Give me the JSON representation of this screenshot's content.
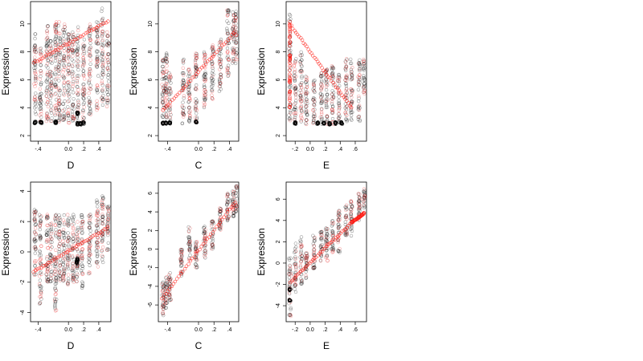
{
  "chart_data": [
    {
      "type": "scatter",
      "xlabel": "D",
      "ylabel": "Expression",
      "xlim": [
        -0.5,
        0.56
      ],
      "ylim": [
        1.6,
        11.6
      ],
      "xticks": [
        -0.4,
        0.0,
        0.2,
        0.4
      ],
      "yticks": [
        2,
        4,
        6,
        8,
        10
      ],
      "clusters": [
        {
          "x": -0.44,
          "ymin": 3,
          "ymax": 9.3
        },
        {
          "x": -0.37,
          "ymin": 2.8,
          "ymax": 8.3
        },
        {
          "x": -0.28,
          "ymin": 3,
          "ymax": 10
        },
        {
          "x": -0.23,
          "ymin": 3,
          "ymax": 9
        },
        {
          "x": -0.17,
          "ymin": 3,
          "ymax": 10.2
        },
        {
          "x": -0.12,
          "ymin": 3,
          "ymax": 10.5
        },
        {
          "x": -0.06,
          "ymin": 3,
          "ymax": 10
        },
        {
          "x": 0.0,
          "ymin": 2.9,
          "ymax": 9.5
        },
        {
          "x": 0.06,
          "ymin": 3,
          "ymax": 9.6
        },
        {
          "x": 0.12,
          "ymin": 2.8,
          "ymax": 10
        },
        {
          "x": 0.2,
          "ymin": 3,
          "ymax": 9
        },
        {
          "x": 0.28,
          "ymin": 3.5,
          "ymax": 10
        },
        {
          "x": 0.38,
          "ymin": 3.7,
          "ymax": 10.5
        },
        {
          "x": 0.45,
          "ymin": 4,
          "ymax": 11.2
        },
        {
          "x": 0.52,
          "ymin": 4,
          "ymax": 10
        }
      ],
      "black_clumps": [
        {
          "x": -0.44,
          "y": 2.95
        },
        {
          "x": -0.36,
          "y": 2.95
        },
        {
          "x": -0.17,
          "y": 2.95
        },
        {
          "x": 0.12,
          "y": 2.85
        },
        {
          "x": 0.16,
          "y": 2.85
        },
        {
          "x": 0.2,
          "y": 2.9
        },
        {
          "x": 0.12,
          "y": 3.6
        }
      ],
      "red_trend": {
        "x0": -0.46,
        "y0": 7.2,
        "x1": 0.52,
        "y1": 10.2
      }
    },
    {
      "type": "scatter",
      "xlabel": "C",
      "ylabel": "Expression",
      "xlim": [
        -0.52,
        0.52
      ],
      "ylim": [
        1.6,
        11.6
      ],
      "xticks": [
        -0.4,
        0.0,
        0.2,
        0.4
      ],
      "yticks": [
        2,
        4,
        6,
        8,
        10
      ],
      "clusters": [
        {
          "x": -0.46,
          "ymin": 2.8,
          "ymax": 7.5
        },
        {
          "x": -0.42,
          "ymin": 2.8,
          "ymax": 8
        },
        {
          "x": -0.37,
          "ymin": 2.8,
          "ymax": 6.5
        },
        {
          "x": -0.2,
          "ymin": 2.8,
          "ymax": 7.5
        },
        {
          "x": -0.12,
          "ymin": 3,
          "ymax": 7
        },
        {
          "x": -0.03,
          "ymin": 3,
          "ymax": 8
        },
        {
          "x": 0.08,
          "ymin": 4,
          "ymax": 8
        },
        {
          "x": 0.18,
          "ymin": 4.5,
          "ymax": 8.5
        },
        {
          "x": 0.28,
          "ymin": 5,
          "ymax": 9
        },
        {
          "x": 0.38,
          "ymin": 6,
          "ymax": 11
        },
        {
          "x": 0.45,
          "ymin": 7,
          "ymax": 11
        },
        {
          "x": 0.49,
          "ymin": 7,
          "ymax": 11
        }
      ],
      "black_clumps": [
        {
          "x": -0.46,
          "y": 2.9
        },
        {
          "x": -0.42,
          "y": 2.9
        },
        {
          "x": -0.37,
          "y": 2.9
        },
        {
          "x": -0.03,
          "y": 3.0
        }
      ],
      "red_trend": {
        "x0": -0.46,
        "y0": 3.8,
        "x1": 0.5,
        "y1": 9.6
      }
    },
    {
      "type": "scatter",
      "xlabel": "E",
      "ylabel": "Expression",
      "xlim": [
        -0.32,
        0.75
      ],
      "ylim": [
        1.6,
        11.6
      ],
      "xticks": [
        -0.2,
        0.0,
        0.2,
        0.4,
        0.6
      ],
      "yticks": [
        2,
        4,
        6,
        8,
        10
      ],
      "clusters": [
        {
          "x": -0.27,
          "ymin": 3,
          "ymax": 11
        },
        {
          "x": -0.2,
          "ymin": 2.8,
          "ymax": 7.5
        },
        {
          "x": -0.12,
          "ymin": 3,
          "ymax": 8
        },
        {
          "x": -0.05,
          "ymin": 2.8,
          "ymax": 6.5
        },
        {
          "x": 0.05,
          "ymin": 2.8,
          "ymax": 6
        },
        {
          "x": 0.15,
          "ymin": 2.8,
          "ymax": 6.5
        },
        {
          "x": 0.22,
          "ymin": 2.8,
          "ymax": 7
        },
        {
          "x": 0.3,
          "ymin": 2.8,
          "ymax": 7
        },
        {
          "x": 0.38,
          "ymin": 2.8,
          "ymax": 6.5
        },
        {
          "x": 0.48,
          "ymin": 3,
          "ymax": 7.5
        },
        {
          "x": 0.55,
          "ymin": 3,
          "ymax": 7.5
        },
        {
          "x": 0.65,
          "ymin": 3,
          "ymax": 7.5
        },
        {
          "x": 0.72,
          "ymin": 5,
          "ymax": 7.5
        }
      ],
      "black_clumps": [
        {
          "x": -0.2,
          "y": 2.9
        },
        {
          "x": 0.1,
          "y": 2.9
        },
        {
          "x": 0.18,
          "y": 2.9
        },
        {
          "x": 0.26,
          "y": 2.85
        },
        {
          "x": 0.34,
          "y": 2.9
        },
        {
          "x": 0.42,
          "y": 2.9
        }
      ],
      "red_trend": {
        "x0": -0.27,
        "y0": 10,
        "x1": 0.55,
        "y1": 4
      },
      "red_column": {
        "x": -0.27,
        "ymin": 4,
        "ymax": 10.2
      }
    },
    {
      "type": "scatter",
      "xlabel": "D",
      "ylabel": "Expression",
      "xlim": [
        -0.5,
        0.56
      ],
      "ylim": [
        -4.6,
        4.6
      ],
      "xticks": [
        -0.4,
        0.0,
        0.2,
        0.4
      ],
      "yticks": [
        -4,
        -2,
        0,
        2,
        4
      ],
      "clusters": [
        {
          "x": -0.44,
          "ymin": -2,
          "ymax": 3
        },
        {
          "x": -0.37,
          "ymin": -3.5,
          "ymax": 2.5
        },
        {
          "x": -0.28,
          "ymin": -2,
          "ymax": 2.5
        },
        {
          "x": -0.23,
          "ymin": -2,
          "ymax": 2
        },
        {
          "x": -0.17,
          "ymin": -4.2,
          "ymax": 2.5
        },
        {
          "x": -0.12,
          "ymin": -2,
          "ymax": 2.5
        },
        {
          "x": -0.06,
          "ymin": -2,
          "ymax": 2.5
        },
        {
          "x": 0.0,
          "ymin": -2.2,
          "ymax": 2.5
        },
        {
          "x": 0.06,
          "ymin": -2,
          "ymax": 2.5
        },
        {
          "x": 0.12,
          "ymin": -2,
          "ymax": 2
        },
        {
          "x": 0.18,
          "ymin": -2.5,
          "ymax": 2.5
        },
        {
          "x": 0.28,
          "ymin": -1.5,
          "ymax": 2.5
        },
        {
          "x": 0.38,
          "ymin": -1,
          "ymax": 3.5
        },
        {
          "x": 0.45,
          "ymin": -1,
          "ymax": 4
        },
        {
          "x": 0.52,
          "ymin": 0,
          "ymax": 3
        }
      ],
      "black_clumps": [
        {
          "x": 0.11,
          "y": -0.7
        },
        {
          "x": 0.12,
          "y": -0.5
        }
      ],
      "red_trend": {
        "x0": -0.46,
        "y0": -1.3,
        "x1": 0.52,
        "y1": 1.6
      }
    },
    {
      "type": "scatter",
      "xlabel": "C",
      "ylabel": "Expression",
      "xlim": [
        -0.52,
        0.52
      ],
      "ylim": [
        -7.8,
        7.2
      ],
      "xticks": [
        -0.4,
        0.0,
        0.2,
        0.4
      ],
      "yticks": [
        -6,
        -4,
        -2,
        0,
        2,
        4,
        6
      ],
      "clusters": [
        {
          "x": -0.46,
          "ymin": -7.2,
          "ymax": -3.5
        },
        {
          "x": -0.42,
          "ymin": -6.5,
          "ymax": -3
        },
        {
          "x": -0.37,
          "ymin": -5.5,
          "ymax": -2.5
        },
        {
          "x": -0.22,
          "ymin": -3,
          "ymax": 0
        },
        {
          "x": -0.12,
          "ymin": -1.5,
          "ymax": 2.5
        },
        {
          "x": -0.03,
          "ymin": -2,
          "ymax": 1
        },
        {
          "x": 0.08,
          "ymin": -1,
          "ymax": 2.5
        },
        {
          "x": 0.18,
          "ymin": 0,
          "ymax": 3
        },
        {
          "x": 0.28,
          "ymin": 2,
          "ymax": 4.5
        },
        {
          "x": 0.38,
          "ymin": 3,
          "ymax": 6
        },
        {
          "x": 0.45,
          "ymin": 3.5,
          "ymax": 6.5
        },
        {
          "x": 0.49,
          "ymin": 4,
          "ymax": 6.8
        }
      ],
      "black_clumps": [],
      "red_trend": {
        "x0": -0.47,
        "y0": -5.3,
        "x1": 0.5,
        "y1": 5.3
      }
    },
    {
      "type": "scatter",
      "xlabel": "E",
      "ylabel": "Expression",
      "xlim": [
        -0.32,
        0.75
      ],
      "ylim": [
        -5.5,
        7.6
      ],
      "xticks": [
        -0.2,
        0.0,
        0.2,
        0.4,
        0.6
      ],
      "yticks": [
        -4,
        -2,
        0,
        2,
        4,
        6
      ],
      "clusters": [
        {
          "x": -0.27,
          "ymin": -5,
          "ymax": 0.5
        },
        {
          "x": -0.2,
          "ymin": -3,
          "ymax": 2
        },
        {
          "x": -0.12,
          "ymin": -2,
          "ymax": 2.5
        },
        {
          "x": -0.05,
          "ymin": -1.5,
          "ymax": 1
        },
        {
          "x": 0.05,
          "ymin": -0.5,
          "ymax": 3
        },
        {
          "x": 0.15,
          "ymin": 0,
          "ymax": 3
        },
        {
          "x": 0.22,
          "ymin": 0,
          "ymax": 3.5
        },
        {
          "x": 0.3,
          "ymin": 1,
          "ymax": 4
        },
        {
          "x": 0.38,
          "ymin": 1,
          "ymax": 5
        },
        {
          "x": 0.48,
          "ymin": 2.5,
          "ymax": 5.5
        },
        {
          "x": 0.55,
          "ymin": 2.5,
          "ymax": 6
        },
        {
          "x": 0.65,
          "ymin": 4,
          "ymax": 6.5
        },
        {
          "x": 0.72,
          "ymin": 5,
          "ymax": 7
        }
      ],
      "black_clumps": [
        {
          "x": -0.27,
          "y": -2.5
        },
        {
          "x": -0.27,
          "y": -3.5
        }
      ],
      "red_trend": {
        "x0": -0.27,
        "y0": -1.8,
        "x1": 0.55,
        "y1": 3.8
      },
      "red_tail": {
        "x0": 0.55,
        "y0": 3.8,
        "x1": 0.72,
        "y1": 4.7
      }
    }
  ]
}
